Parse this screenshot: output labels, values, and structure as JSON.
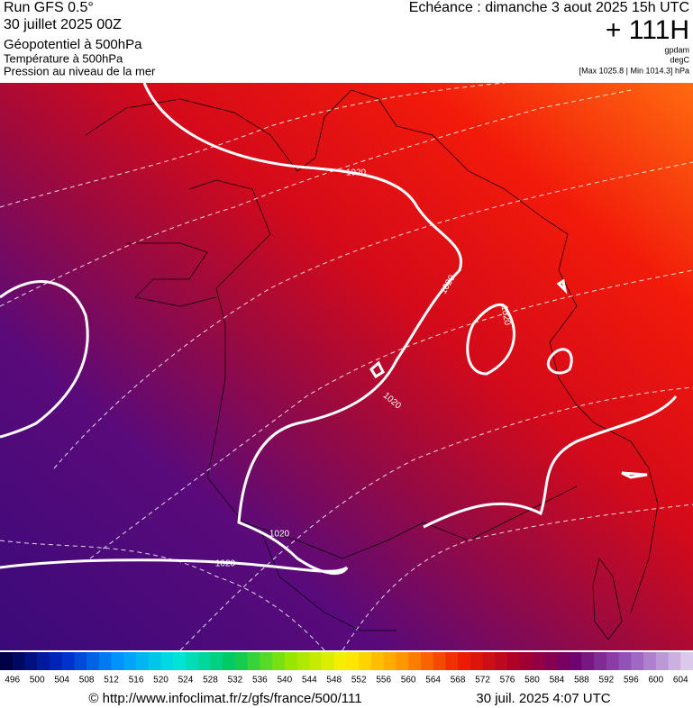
{
  "header": {
    "run": "Run GFS 0.5°",
    "date": "30 juillet 2025 00Z",
    "layers": [
      "Géopotentiel à 500hPa",
      "Température à 500hPa",
      "Pression au niveau de la mer"
    ],
    "forecast": "Echéance : dimanche 3 aout 2025 15h UTC",
    "offset": "+ 111H",
    "units": [
      "gpdam",
      "degC",
      "[Max 1025.8 | Min 1014.3] hPa"
    ]
  },
  "map": {
    "contour_labels": [
      "1020",
      "1020",
      "1020",
      "1020",
      "1020",
      "1020"
    ]
  },
  "colorbar": {
    "labels": [
      496,
      500,
      504,
      508,
      512,
      516,
      520,
      524,
      528,
      532,
      536,
      540,
      544,
      548,
      552,
      556,
      560,
      564,
      568,
      572,
      576,
      580,
      584,
      588,
      592,
      596,
      600,
      604
    ]
  },
  "footer": {
    "source": "© http://www.infoclimat.fr/z/gfs/france/500/111",
    "timestamp": "30 juil. 2025  4:07 UTC"
  }
}
